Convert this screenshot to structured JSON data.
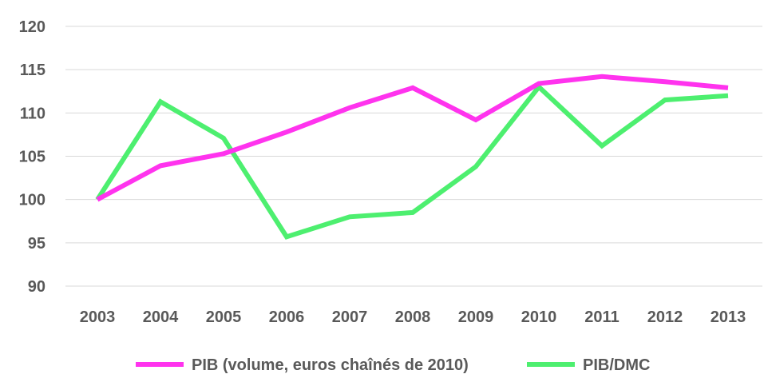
{
  "chart_data": {
    "type": "line",
    "categories": [
      "2003",
      "2004",
      "2005",
      "2006",
      "2007",
      "2008",
      "2009",
      "2010",
      "2011",
      "2012",
      "2013"
    ],
    "series": [
      {
        "name": "PIB (volume, euros chaînés de 2010)",
        "color": "#ff33ee",
        "values": [
          100,
          103.9,
          105.3,
          107.8,
          110.6,
          112.9,
          109.2,
          113.4,
          114.2,
          113.6,
          112.9
        ]
      },
      {
        "name": "PIB/DMC",
        "color": "#4def6f",
        "values": [
          100,
          111.3,
          107.1,
          95.7,
          98.0,
          98.5,
          103.8,
          113.0,
          106.2,
          111.5,
          112.0
        ]
      }
    ],
    "y_ticks": [
      "90",
      "95",
      "100",
      "105",
      "110",
      "115",
      "120"
    ],
    "ylim": [
      90,
      120
    ],
    "title": "",
    "xlabel": "",
    "ylabel": "",
    "grid": "horizontal",
    "legend_position": "bottom"
  }
}
